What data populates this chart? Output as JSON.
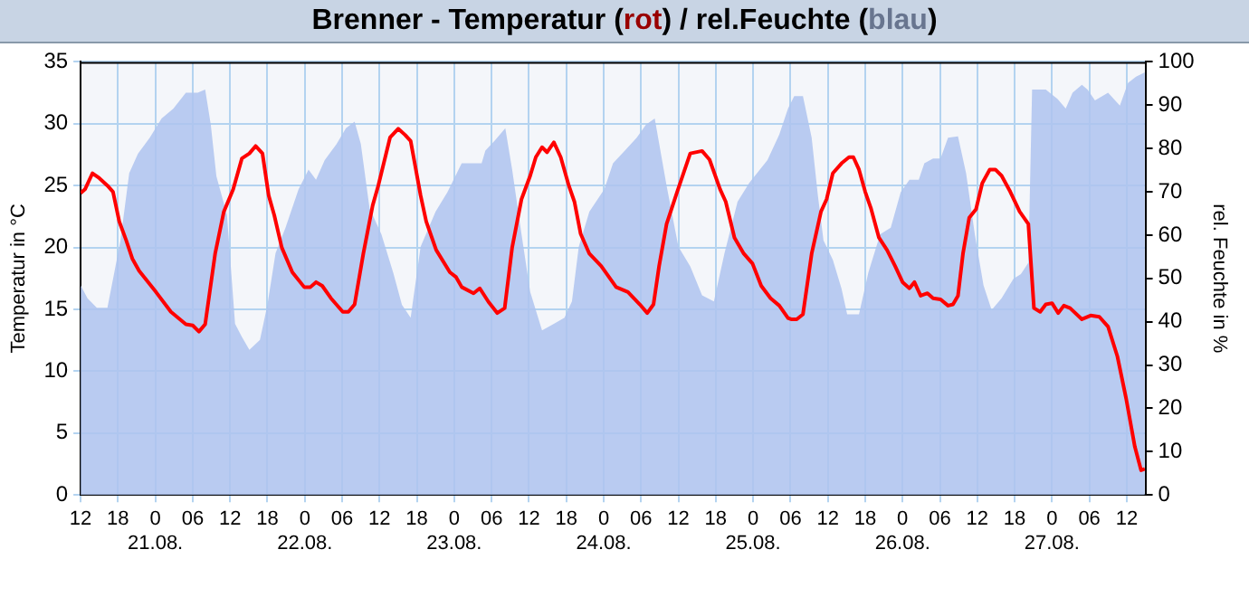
{
  "chart_data": {
    "type": "line",
    "title": "Brenner - Temperatur (rot) / rel.Feuchte (blau)",
    "ylabel": "Temperatur in °C",
    "y2label": "rel. Feuchte in %",
    "xlim": [
      "--08-20T12:00",
      "--08-27T15:00"
    ],
    "xticks": [
      {
        "value": "--08-20T12:00",
        "label": "12"
      },
      {
        "value": "--08-20T18:00",
        "label": "18"
      },
      {
        "value": "--08-21T00:00",
        "label": "0\n21.08."
      },
      {
        "value": "--08-21T06:00",
        "label": "06"
      },
      {
        "value": "--08-21T12:00",
        "label": "12"
      },
      {
        "value": "--08-21T18:00",
        "label": "18"
      },
      {
        "value": "--08-22T00:00",
        "label": "0\n22.08."
      },
      {
        "value": "--08-22T06:00",
        "label": "06"
      },
      {
        "value": "--08-22T12:00",
        "label": "12"
      },
      {
        "value": "--08-22T18:00",
        "label": "18"
      },
      {
        "value": "--08-23T00:00",
        "label": "0\n23.08."
      },
      {
        "value": "--08-23T06:00",
        "label": "06"
      },
      {
        "value": "--08-23T12:00",
        "label": "12"
      },
      {
        "value": "--08-23T18:00",
        "label": "18"
      },
      {
        "value": "--08-24T00:00",
        "label": "0\n24.08."
      },
      {
        "value": "--08-24T06:00",
        "label": "06"
      },
      {
        "value": "--08-24T12:00",
        "label": "12"
      },
      {
        "value": "--08-24T18:00",
        "label": "18"
      },
      {
        "value": "--08-25T00:00",
        "label": "0\n25.08."
      },
      {
        "value": "--08-25T06:00",
        "label": "06"
      },
      {
        "value": "--08-25T12:00",
        "label": "12"
      },
      {
        "value": "--08-25T18:00",
        "label": "18"
      },
      {
        "value": "--08-26T00:00",
        "label": "0\n26.08."
      },
      {
        "value": "--08-26T06:00",
        "label": "06"
      },
      {
        "value": "--08-26T12:00",
        "label": "12"
      },
      {
        "value": "--08-26T18:00",
        "label": "18"
      },
      {
        "value": "--08-27T00:00",
        "label": "0\n27.08."
      },
      {
        "value": "--08-27T06:00",
        "label": "06"
      },
      {
        "value": "--08-27T12:00",
        "label": "12"
      }
    ],
    "ylim": [
      0,
      35
    ],
    "yticks": [
      0,
      5,
      10,
      15,
      20,
      25,
      30,
      35
    ],
    "y2lim": [
      0,
      100
    ],
    "y2ticks": [
      0,
      10,
      20,
      30,
      40,
      50,
      60,
      70,
      80,
      90,
      100
    ],
    "grid": true,
    "legend": false,
    "marker": "none",
    "line_style": "solid",
    "series": [
      {
        "type": "line",
        "color": "#ff0000",
        "x": [
          "--08-20T12:00",
          "--08-20T12:42",
          "--08-20T13:54",
          "--08-20T15:00",
          "--08-20T16:18",
          "--08-20T17:12",
          "--08-20T18:12",
          "--08-20T19:18",
          "--08-20T20:18",
          "--08-20T21:24",
          "--08-21T00:06",
          "--08-21T02:30",
          "--08-21T04:54",
          "--08-21T06:00",
          "--08-21T07:00",
          "--08-21T08:00",
          "--08-21T09:36",
          "--08-21T11:00",
          "--08-21T12:30",
          "--08-21T13:54",
          "--08-21T15:06",
          "--08-21T16:06",
          "--08-21T17:12",
          "--08-21T18:12",
          "--08-21T19:06",
          "--08-21T20:18",
          "--08-21T22:00",
          "--08-21T23:54",
          "--08-22T00:54",
          "--08-22T01:48",
          "--08-22T02:48",
          "--08-22T04:12",
          "--08-22T06:06",
          "--08-22T07:00",
          "--08-22T08:00",
          "--08-22T09:24",
          "--08-22T10:54",
          "--08-22T11:48",
          "--08-22T13:42",
          "--08-22T15:00",
          "--08-22T16:06",
          "--08-22T17:00",
          "--08-22T18:36",
          "--08-22T19:30",
          "--08-22T21:06",
          "--08-22T23:18",
          "--08-23T00:18",
          "--08-23T01:12",
          "--08-23T03:06",
          "--08-23T04:06",
          "--08-23T05:30",
          "--08-23T06:54",
          "--08-23T08:06",
          "--08-23T09:18",
          "--08-23T10:48",
          "--08-23T12:12",
          "--08-23T13:06",
          "--08-23T14:06",
          "--08-23T14:54",
          "--08-23T16:00",
          "--08-23T17:06",
          "--08-23T18:24",
          "--08-23T19:18",
          "--08-23T20:18",
          "--08-23T21:42",
          "--08-23T23:36",
          "--08-24T02:00",
          "--08-24T03:54",
          "--08-24T05:48",
          "--08-24T07:00",
          "--08-24T08:00",
          "--08-24T08:54",
          "--08-24T10:06",
          "--08-24T11:48",
          "--08-24T13:54",
          "--08-24T15:48",
          "--08-24T17:00",
          "--08-24T18:42",
          "--08-24T19:36",
          "--08-24T21:00",
          "--08-24T22:30",
          "--08-24T23:54",
          "--08-25T01:18",
          "--08-25T02:48",
          "--08-25T04:12",
          "--08-25T05:36",
          "--08-25T06:06",
          "--08-25T07:00",
          "--08-25T08:00",
          "--08-25T09:24",
          "--08-25T10:54",
          "--08-25T11:48",
          "--08-25T12:48",
          "--08-25T14:12",
          "--08-25T15:24",
          "--08-25T16:06",
          "--08-25T17:00",
          "--08-25T18:00",
          "--08-25T18:54",
          "--08-25T20:12",
          "--08-25T21:30",
          "--08-25T22:48",
          "--08-26T00:00",
          "--08-26T01:06",
          "--08-26T01:54",
          "--08-26T02:54",
          "--08-26T04:00",
          "--08-26T04:54",
          "--08-26T06:06",
          "--08-26T07:18",
          "--08-26T08:06",
          "--08-26T08:54",
          "--08-26T09:42",
          "--08-26T10:42",
          "--08-26T11:48",
          "--08-26T12:48",
          "--08-26T14:00",
          "--08-26T14:54",
          "--08-26T15:54",
          "--08-26T17:18",
          "--08-26T18:48",
          "--08-26T20:12",
          "--08-26T21:06",
          "--08-26T22:06",
          "--08-26T23:00",
          "--08-27T00:00",
          "--08-27T01:00",
          "--08-27T01:54",
          "--08-27T02:54",
          "--08-27T04:48",
          "--08-27T06:12",
          "--08-27T07:36",
          "--08-27T09:00",
          "--08-27T10:30",
          "--08-27T11:54",
          "--08-27T13:18",
          "--08-27T14:18",
          "--08-27T14:54"
        ],
        "values": [
          24.4,
          24.7,
          26.0,
          25.6,
          25.0,
          24.5,
          22.1,
          20.6,
          19.1,
          18.1,
          16.4,
          14.8,
          13.8,
          13.7,
          13.2,
          13.8,
          19.5,
          22.9,
          24.7,
          27.2,
          27.6,
          28.2,
          27.6,
          24.2,
          22.6,
          20.0,
          18.0,
          16.8,
          16.8,
          17.2,
          16.9,
          15.9,
          14.8,
          14.8,
          15.4,
          19.5,
          23.4,
          25.0,
          28.9,
          29.6,
          29.1,
          28.6,
          24.2,
          22.1,
          19.8,
          18.0,
          17.6,
          16.8,
          16.3,
          16.7,
          15.6,
          14.7,
          15.1,
          20.0,
          23.9,
          25.8,
          27.3,
          28.1,
          27.7,
          28.5,
          27.3,
          25.0,
          23.7,
          21.1,
          19.5,
          18.5,
          16.8,
          16.4,
          15.4,
          14.7,
          15.4,
          18.5,
          21.9,
          24.5,
          27.6,
          27.8,
          27.1,
          24.7,
          23.7,
          20.8,
          19.5,
          18.7,
          16.9,
          15.9,
          15.3,
          14.3,
          14.2,
          14.2,
          14.6,
          19.5,
          22.9,
          23.9,
          26.0,
          26.8,
          27.3,
          27.3,
          26.3,
          24.5,
          23.2,
          20.8,
          19.8,
          18.5,
          17.2,
          16.7,
          17.2,
          16.1,
          16.3,
          15.9,
          15.8,
          15.3,
          15.4,
          16.1,
          19.5,
          22.4,
          23.1,
          25.2,
          26.3,
          26.3,
          25.8,
          24.5,
          22.9,
          21.9,
          15.1,
          14.8,
          15.4,
          15.5,
          14.7,
          15.3,
          15.1,
          14.2,
          14.5,
          14.4,
          13.6,
          11.2,
          7.8,
          3.9,
          2.0,
          2.1
        ]
      },
      {
        "type": "area",
        "axis": "y2",
        "color": "#aec3ee",
        "x": [
          "--08-20T12:00",
          "--08-20T13:06",
          "--08-20T14:36",
          "--08-20T16:18",
          "--08-20T17:24",
          "--08-20T18:24",
          "--08-20T19:48",
          "--08-20T21:12",
          "--08-20T23:06",
          "--08-21T01:00",
          "--08-21T02:54",
          "--08-21T04:54",
          "--08-21T06:48",
          "--08-21T08:00",
          "--08-21T08:54",
          "--08-21T09:48",
          "--08-21T11:30",
          "--08-21T12:48",
          "--08-21T13:54",
          "--08-21T15:06",
          "--08-21T16:48",
          "--08-21T18:00",
          "--08-21T19:18",
          "--08-21T20:54",
          "--08-21T23:00",
          "--08-22T00:36",
          "--08-22T01:48",
          "--08-22T03:12",
          "--08-22T05:06",
          "--08-22T06:36",
          "--08-22T08:00",
          "--08-22T09:00",
          "--08-22T10:24",
          "--08-22T12:18",
          "--08-22T14:12",
          "--08-22T15:36",
          "--08-22T17:00",
          "--08-22T18:36",
          "--08-22T21:00",
          "--08-22T22:54",
          "--08-23T01:12",
          "--08-23T02:42",
          "--08-23T04:24",
          "--08-23T05:00",
          "--08-23T06:30",
          "--08-23T08:12",
          "--08-23T09:18",
          "--08-23T10:48",
          "--08-23T12:12",
          "--08-23T14:06",
          "--08-23T16:00",
          "--08-23T17:42",
          "--08-23T18:54",
          "--08-23T20:00",
          "--08-23T21:42",
          "--08-24T00:06",
          "--08-24T01:30",
          "--08-24T03:24",
          "--08-24T05:18",
          "--08-24T06:48",
          "--08-24T08:12",
          "--08-24T10:06",
          "--08-24T12:00",
          "--08-24T13:54",
          "--08-24T15:48",
          "--08-24T17:42",
          "--08-24T19:24",
          "--08-24T21:30",
          "--08-24T23:24",
          "--08-25T02:18",
          "--08-25T04:12",
          "--08-25T05:36",
          "--08-25T06:36",
          "--08-25T08:00",
          "--08-25T09:24",
          "--08-25T10:24",
          "--08-25T11:18",
          "--08-25T12:48",
          "--08-25T14:12",
          "--08-25T15:06",
          "--08-25T17:00",
          "--08-25T18:30",
          "--08-25T20:24",
          "--08-25T22:06",
          "--08-25T23:42",
          "--08-26T01:06",
          "--08-26T02:36",
          "--08-26T03:30",
          "--08-26T04:54",
          "--08-26T06:06",
          "--08-26T07:18",
          "--08-26T08:54",
          "--08-26T10:12",
          "--08-26T11:36",
          "--08-26T13:00",
          "--08-26T14:18",
          "--08-26T15:54",
          "--08-26T17:48",
          "--08-26T19:00",
          "--08-26T20:12",
          "--08-26T20:48",
          "--08-26T23:00",
          "--08-27T00:54",
          "--08-27T02:12",
          "--08-27T03:18",
          "--08-27T04:48",
          "--08-27T05:42",
          "--08-27T06:54",
          "--08-27T09:00",
          "--08-27T10:54",
          "--08-27T12:12",
          "--08-27T13:30",
          "--08-27T14:54"
        ],
        "values": [
          48.4,
          45.4,
          43.2,
          43.2,
          51.3,
          58.8,
          74.3,
          78.8,
          82.5,
          86.9,
          89.2,
          92.9,
          92.9,
          93.6,
          85.5,
          73.6,
          64.7,
          39.5,
          36.5,
          33.5,
          35.8,
          43.9,
          55.8,
          61.7,
          70.6,
          75.1,
          72.8,
          77.3,
          81,
          84.7,
          86.2,
          81,
          66.2,
          60.2,
          51.3,
          43.9,
          40.9,
          57.3,
          65.4,
          69.9,
          76.6,
          76.6,
          76.6,
          79.5,
          81.8,
          84.7,
          75.1,
          60.2,
          46.9,
          38.0,
          39.5,
          40.9,
          44.7,
          57.3,
          65.4,
          70.6,
          76.6,
          79.5,
          82.5,
          85.5,
          86.9,
          71.4,
          57.3,
          52.8,
          46.1,
          44.7,
          55.8,
          67.7,
          72.1,
          77.3,
          83.2,
          89.2,
          92.1,
          92.1,
          82.5,
          69.1,
          58.8,
          54.3,
          47.6,
          41.7,
          41.7,
          51.3,
          60.2,
          61.7,
          69.9,
          72.8,
          72.8,
          76.6,
          77.7,
          77.7,
          82.5,
          82.8,
          74.3,
          60.2,
          48.4,
          42.7,
          45.4,
          49.9,
          51.0,
          53.6,
          93.6,
          93.6,
          91.4,
          89.2,
          92.9,
          94.7,
          93.6,
          91.1,
          92.9,
          89.9,
          95.1,
          96.6,
          97.6
        ]
      }
    ]
  }
}
